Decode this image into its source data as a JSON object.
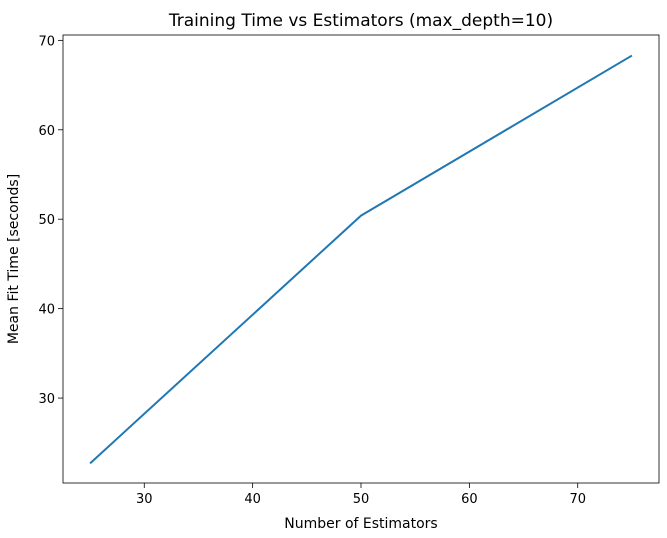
{
  "chart_data": {
    "type": "line",
    "title": "Training Time vs Estimators (max_depth=10)",
    "xlabel": "Number of Estimators",
    "ylabel": "Mean Fit Time [seconds]",
    "x": [
      25,
      50,
      75
    ],
    "series": [
      {
        "values": [
          22.7,
          50.4,
          68.3
        ],
        "color": "#1f77b4"
      }
    ],
    "xticks": [
      30,
      40,
      50,
      60,
      70
    ],
    "yticks": [
      30,
      40,
      50,
      60,
      70
    ],
    "xlim": [
      22.5,
      77.5
    ],
    "ylim": [
      20.5,
      70.6
    ],
    "grid": false,
    "legend": false
  }
}
